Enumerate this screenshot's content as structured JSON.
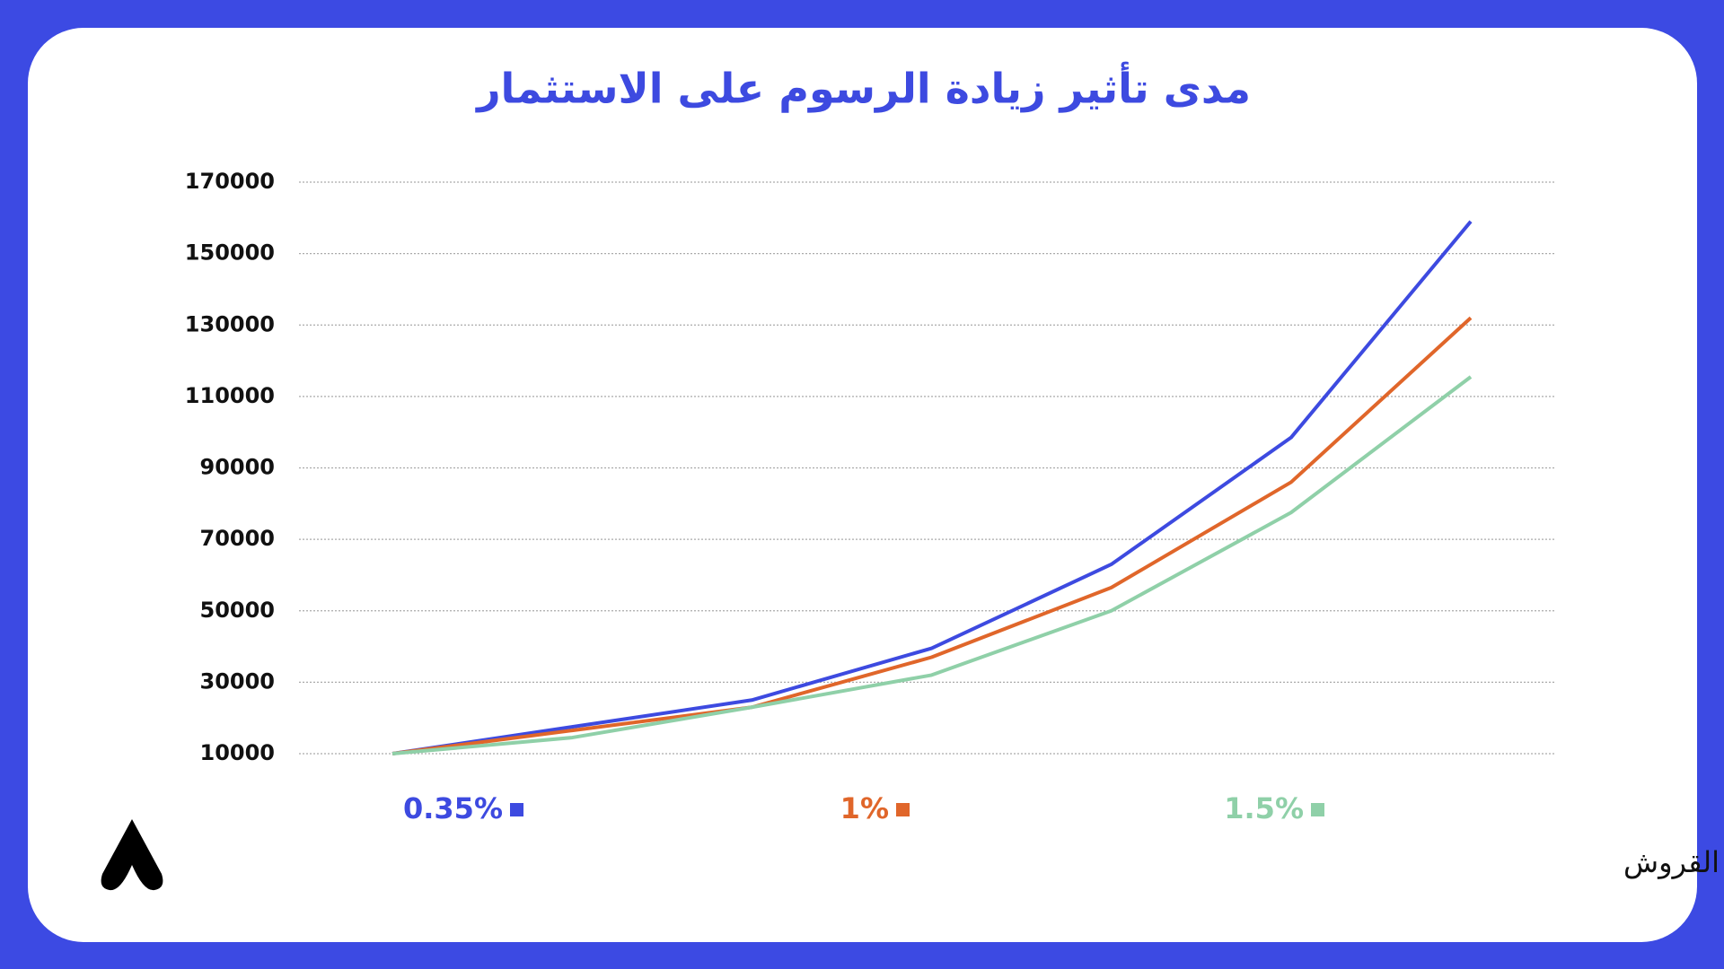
{
  "chart_data": {
    "type": "line",
    "title": "مدى تأثير زيادة الرسوم على الاستثمار",
    "source": "نشرة القروش",
    "categories": [
      null,
      null,
      null,
      null,
      null,
      null,
      null
    ],
    "series": [
      {
        "name": "0.35%",
        "color": "#3d4ae0",
        "values": [
          10000,
          17500,
          25000,
          39500,
          63000,
          98500,
          159000
        ]
      },
      {
        "name": "1%",
        "color": "#e0662a",
        "values": [
          10000,
          16500,
          23000,
          37000,
          56500,
          86000,
          132000
        ]
      },
      {
        "name": "1.5%",
        "color": "#8fd0a8",
        "values": [
          10000,
          14500,
          23000,
          32000,
          50000,
          77500,
          115500
        ]
      }
    ],
    "ylim": [
      10000,
      170000
    ],
    "yticks": [
      10000,
      30000,
      50000,
      70000,
      90000,
      110000,
      130000,
      150000,
      170000
    ],
    "grid": true,
    "legend": "bottom"
  }
}
